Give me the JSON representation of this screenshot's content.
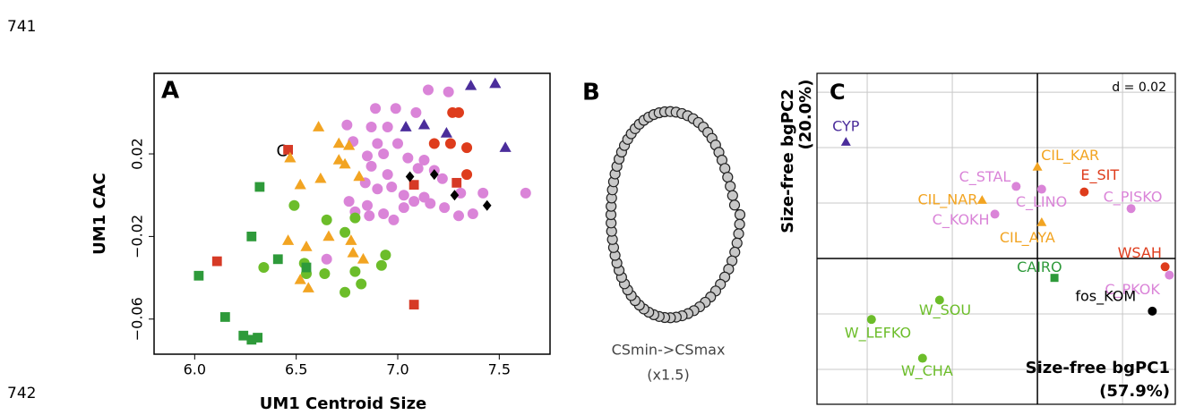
{
  "line_numbers": [
    "741",
    "742"
  ],
  "chart_data": [
    {
      "type": "scatter",
      "panel_label": "A",
      "xlabel": "UM1 Centroid Size",
      "ylabel": "UM1 CAC",
      "xlim": [
        5.8,
        7.75
      ],
      "ylim": [
        -0.077,
        0.059
      ],
      "xticks": [
        {
          "value": 6,
          "label": "6.0"
        },
        6.5,
        {
          "value": 7,
          "label": "7.0"
        },
        7.5
      ],
      "yticks": [
        {
          "value": -0.06,
          "label": "−0.06"
        },
        {
          "value": -0.02,
          "label": "−0.02"
        },
        0.02
      ],
      "annotations": [
        {
          "text": "C",
          "x": 6.43,
          "y": 0.021
        }
      ],
      "series": [
        {
          "color": "#4b2d9b",
          "marker": "triangle",
          "x": [
            7.36,
            7.48,
            7.04,
            7.13,
            7.24,
            7.53
          ],
          "values": [
            0.053,
            0.054,
            0.033,
            0.034,
            0.03,
            0.023
          ]
        },
        {
          "color": "#da84d8",
          "marker": "circle",
          "x": [
            7.15,
            7.25,
            6.89,
            6.99,
            7.09,
            6.87,
            6.95,
            6.75,
            6.78,
            6.9,
            7.0,
            6.85,
            6.93,
            7.05,
            7.13,
            7.1,
            7.18,
            7.22,
            6.95,
            6.87,
            6.84,
            6.9,
            6.97,
            7.03,
            7.13,
            7.16,
            7.23,
            7.3,
            7.37,
            7.31,
            7.42,
            7.63,
            6.93,
            7.03,
            7.08,
            6.85,
            6.76,
            6.79,
            6.98,
            6.65,
            6.86
          ],
          "values": [
            0.051,
            0.05,
            0.042,
            0.042,
            0.04,
            0.033,
            0.033,
            0.034,
            0.026,
            0.025,
            0.025,
            0.019,
            0.02,
            0.018,
            0.017,
            0.013,
            0.012,
            0.008,
            0.01,
            0.014,
            0.006,
            0.003,
            0.004,
            0.0,
            -0.001,
            -0.004,
            -0.006,
            -0.01,
            -0.009,
            0.001,
            0.001,
            0.001,
            -0.009,
            -0.006,
            -0.003,
            -0.005,
            -0.003,
            -0.008,
            -0.012,
            -0.031,
            -0.01
          ]
        },
        {
          "color": "#de3c1c",
          "marker": "circle",
          "x": [
            7.27,
            7.3,
            7.18,
            7.26,
            7.34,
            7.34
          ],
          "values": [
            0.04,
            0.04,
            0.025,
            0.025,
            0.023,
            0.01
          ]
        },
        {
          "color": "#d63a26",
          "marker": "square",
          "x": [
            6.46,
            6.11,
            7.08,
            7.08,
            7.29
          ],
          "values": [
            0.022,
            -0.032,
            -0.053,
            0.005,
            0.006
          ]
        },
        {
          "color": "#000000",
          "marker": "diamond",
          "x": [
            7.06,
            7.18,
            7.28,
            7.44
          ],
          "values": [
            0.009,
            0.01,
            0.0,
            -0.005
          ]
        },
        {
          "color": "#f2a422",
          "marker": "triangle",
          "x": [
            6.47,
            6.61,
            6.71,
            6.76,
            6.71,
            6.74,
            6.52,
            6.62,
            6.81,
            6.46,
            6.55,
            6.66,
            6.77,
            6.78,
            6.83,
            6.56,
            6.52
          ],
          "values": [
            0.018,
            0.033,
            0.025,
            0.024,
            0.017,
            0.015,
            0.005,
            0.008,
            0.009,
            -0.022,
            -0.025,
            -0.02,
            -0.022,
            -0.028,
            -0.031,
            -0.045,
            -0.041
          ]
        },
        {
          "color": "#6cbd2a",
          "marker": "circle",
          "x": [
            6.49,
            6.65,
            6.74,
            6.79,
            6.54,
            6.55,
            6.64,
            6.34,
            6.74,
            6.79,
            6.82,
            6.92,
            6.94
          ],
          "values": [
            -0.005,
            -0.012,
            -0.018,
            -0.011,
            -0.033,
            -0.038,
            -0.038,
            -0.035,
            -0.047,
            -0.037,
            -0.043,
            -0.034,
            -0.029
          ]
        },
        {
          "color": "#2e9a3a",
          "marker": "square",
          "x": [
            6.32,
            6.28,
            6.02,
            6.41,
            6.15,
            6.24,
            6.28,
            6.31,
            6.55
          ],
          "values": [
            0.004,
            -0.02,
            -0.039,
            -0.031,
            -0.059,
            -0.068,
            -0.07,
            -0.069,
            -0.035
          ]
        }
      ]
    },
    {
      "type": "outline",
      "panel_label": "B",
      "caption": [
        "CSmin->CSmax",
        "(x1.5)"
      ]
    },
    {
      "type": "scatter",
      "panel_label": "C",
      "annotation": "d = 0.02",
      "xlabel": [
        "Size-free bgPC1",
        "(57.9%)"
      ],
      "ylabel": [
        "Size-free bgPC2",
        "(20.0%)"
      ],
      "xlim": [
        -0.0518,
        0.0324
      ],
      "ylim": [
        -0.0526,
        0.0668
      ],
      "grid": true,
      "xticks": [
        -0.04,
        -0.02,
        0,
        0.02
      ],
      "yticks": [
        -0.04,
        -0.02,
        0,
        0.02,
        0.04,
        0.06
      ],
      "series": [
        {
          "name": "CYP",
          "color": "#4b2d9b",
          "marker": "triangle",
          "x": [
            -0.045
          ],
          "values": [
            0.042
          ]
        },
        {
          "name": "CIL_KAR",
          "color": "#f2a422",
          "marker": "triangle",
          "x": [
            0.0
          ],
          "values": [
            0.033
          ]
        },
        {
          "name": "E_SIT",
          "color": "#de3c1c",
          "marker": "circle",
          "x": [
            0.011
          ],
          "values": [
            0.024
          ]
        },
        {
          "name": "C_STAL",
          "color": "#da84d8",
          "marker": "circle",
          "x": [
            -0.005
          ],
          "values": [
            0.026
          ]
        },
        {
          "name": "CIL_NAR",
          "color": "#f2a422",
          "marker": "triangle",
          "x": [
            -0.013
          ],
          "values": [
            0.021
          ]
        },
        {
          "name": "C_LINO",
          "color": "#da84d8",
          "marker": "circle",
          "x": [
            0.001
          ],
          "values": [
            0.025
          ]
        },
        {
          "name": "C_PISKO",
          "color": "#da84d8",
          "marker": "circle",
          "x": [
            0.022
          ],
          "values": [
            0.018
          ]
        },
        {
          "name": "C_KOKH",
          "color": "#da84d8",
          "marker": "circle",
          "x": [
            -0.01
          ],
          "values": [
            0.016
          ]
        },
        {
          "name": "CIL_AYA",
          "color": "#f2a422",
          "marker": "triangle",
          "x": [
            0.001
          ],
          "values": [
            0.013
          ]
        },
        {
          "name": "WSAH",
          "color": "#de3c1c",
          "marker": "circle",
          "x": [
            0.03
          ],
          "values": [
            -0.003
          ]
        },
        {
          "name": "C_PKOK",
          "color": "#da84d8",
          "marker": "circle",
          "x": [
            0.031
          ],
          "values": [
            -0.006
          ]
        },
        {
          "name": "CAIRO",
          "color": "#2e9a3a",
          "marker": "square",
          "x": [
            0.004
          ],
          "values": [
            -0.007
          ]
        },
        {
          "name": "fos_KOM",
          "color": "#000000",
          "marker": "circle",
          "x": [
            0.027
          ],
          "values": [
            -0.019
          ]
        },
        {
          "name": "W_SOU",
          "color": "#6cbd2a",
          "marker": "circle",
          "x": [
            -0.023
          ],
          "values": [
            -0.015
          ]
        },
        {
          "name": "W_LEFKO",
          "color": "#6cbd2a",
          "marker": "circle",
          "x": [
            -0.039
          ],
          "values": [
            -0.022
          ]
        },
        {
          "name": "W_CHA",
          "color": "#6cbd2a",
          "marker": "circle",
          "x": [
            -0.027
          ],
          "values": [
            -0.036
          ]
        }
      ]
    }
  ]
}
